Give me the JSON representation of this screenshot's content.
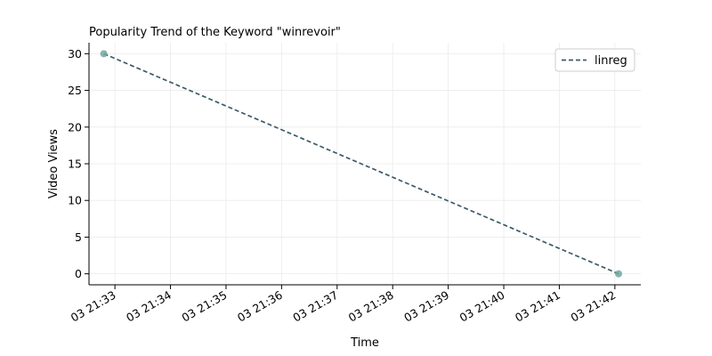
{
  "chart_data": {
    "type": "line",
    "title": "Popularity Trend of the Keyword \"winrevoir\"",
    "xlabel": "Time",
    "ylabel": "Video Views",
    "x_tick_labels": [
      "03 21:33",
      "03 21:34",
      "03 21:35",
      "03 21:36",
      "03 21:37",
      "03 21:38",
      "03 21:39",
      "03 21:40",
      "03 21:41",
      "03 21:42"
    ],
    "y_ticks": [
      0,
      5,
      10,
      15,
      20,
      25,
      30
    ],
    "xlim": [
      "03 21:32:32",
      "03 21:42:28"
    ],
    "ylim": [
      -1.5,
      31.5
    ],
    "grid": true,
    "legend_position": "top-right",
    "points": [
      {
        "x": "03 21:32:48",
        "y": 30
      },
      {
        "x": "03 21:42:04",
        "y": 0
      }
    ],
    "series": [
      {
        "name": "linreg",
        "style": "dashed",
        "color": "#3d5a66",
        "x": [
          "03 21:32:48",
          "03 21:42:04"
        ],
        "y": [
          30,
          0
        ]
      }
    ],
    "point_color": "#6fa8a0"
  }
}
